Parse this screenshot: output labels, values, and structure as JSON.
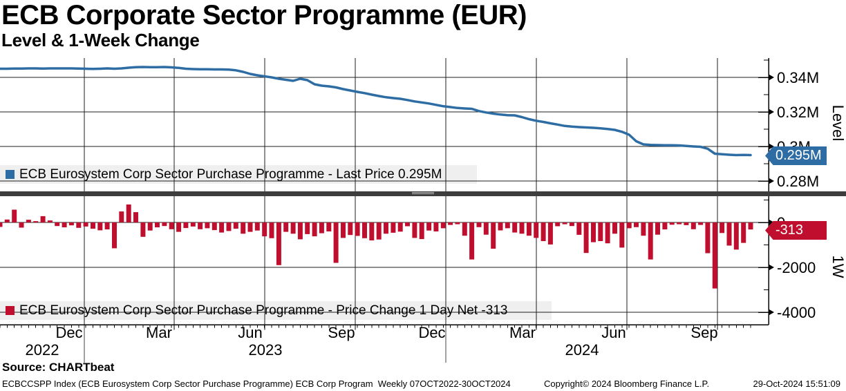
{
  "title": "ECB Corporate Sector Programme (EUR)",
  "subtitle": "Level & 1-Week Change",
  "source": "Source: CHARTbeat",
  "status_bar": {
    "left": "ECBCCSPP Index (ECB Eurosystem Corp Sector Purchase Programme) ECB Corp Program  Weekly 07OCT2022-30OCT2024",
    "copyright": "Copyright© 2024 Bloomberg Finance L.P.",
    "timestamp": "29-Oct-2024 15:51:09"
  },
  "colors": {
    "line_blue": "#2e6da4",
    "bar_red": "#c00f2e",
    "tag_blue": "#2e6da4",
    "tag_red": "#c00f2e",
    "legend_bg": "#efefef",
    "grid": "#1c1c1c",
    "separator": "#3d3d3d"
  },
  "x_axis": {
    "month_labels": [
      "Dec",
      "Mar",
      "Jun",
      "Sep",
      "Dec",
      "Mar",
      "Jun",
      "Sep"
    ],
    "year_labels": [
      "2022",
      "2023",
      "2024"
    ]
  },
  "chart_data": [
    {
      "type": "line",
      "panel": "top",
      "legend": "ECB Eurosystem Corp Sector Purchase Programme - Last Price 0.295M",
      "series_name": "ECB Eurosystem Corp Sector Purchase Programme",
      "measure": "Last Price",
      "unit": "M",
      "tag": "0.295M",
      "last_value": 0.295,
      "frequency": "Weekly",
      "x_range": "07OCT2022-30OCT2024",
      "y_axis": {
        "title": "Level",
        "major_ticks": [
          0.34,
          0.32,
          0.3,
          0.28
        ],
        "major_tick_labels": [
          "0.34M",
          "0.32M",
          "0.3M",
          "0.28M"
        ],
        "minor_ticks": [
          0.35,
          0.33,
          0.31,
          0.29
        ]
      },
      "values_M": [
        0.345,
        0.345,
        0.3451,
        0.3451,
        0.3452,
        0.3452,
        0.3451,
        0.3452,
        0.3452,
        0.3452,
        0.3452,
        0.3451,
        0.345,
        0.3449,
        0.345,
        0.3452,
        0.345,
        0.3452,
        0.3456,
        0.3459,
        0.346,
        0.3459,
        0.3459,
        0.346,
        0.3458,
        0.3455,
        0.345,
        0.3448,
        0.3447,
        0.3447,
        0.3446,
        0.3446,
        0.3445,
        0.3441,
        0.3432,
        0.342,
        0.3412,
        0.3406,
        0.34,
        0.3392,
        0.3386,
        0.338,
        0.3392,
        0.3384,
        0.336,
        0.3352,
        0.3348,
        0.3342,
        0.3332,
        0.3324,
        0.3316,
        0.3309,
        0.33,
        0.3292,
        0.3285,
        0.328,
        0.3276,
        0.3269,
        0.3261,
        0.3255,
        0.3249,
        0.3241,
        0.3233,
        0.3228,
        0.3223,
        0.322,
        0.3218,
        0.3205,
        0.3197,
        0.319,
        0.3185,
        0.3181,
        0.318,
        0.317,
        0.3158,
        0.3149,
        0.3142,
        0.3134,
        0.3127,
        0.3119,
        0.3115,
        0.3112,
        0.311,
        0.3108,
        0.3105,
        0.3101,
        0.3096,
        0.3085,
        0.3068,
        0.303,
        0.3012,
        0.3009,
        0.3008,
        0.3007,
        0.3007,
        0.3006,
        0.3003,
        0.3,
        0.2998,
        0.2987,
        0.2958,
        0.2955,
        0.2952,
        0.295,
        0.2951,
        0.295
      ]
    },
    {
      "type": "bar",
      "panel": "bottom",
      "legend": "ECB Eurosystem Corp Sector Purchase Programme - Price Change 1 Day Net -313",
      "series_name": "ECB Eurosystem Corp Sector Purchase Programme",
      "measure": "Price Change 1 Day Net",
      "tag": "-313",
      "last_value": -313,
      "y_axis": {
        "title": "1W",
        "major_ticks": [
          0,
          -2000,
          -4000
        ],
        "major_tick_labels": [
          "0",
          "-2000",
          "-4000"
        ],
        "minor_ticks": [
          1000,
          -1000,
          -3000
        ]
      },
      "values": [
        -200,
        130,
        570,
        -230,
        120,
        60,
        280,
        90,
        -160,
        -220,
        -130,
        -240,
        -180,
        -280,
        -350,
        -310,
        -1150,
        490,
        800,
        460,
        -640,
        -360,
        -220,
        -160,
        -300,
        -420,
        -250,
        -180,
        -300,
        -260,
        -340,
        -450,
        -380,
        -280,
        -500,
        -420,
        -360,
        -620,
        -700,
        -1900,
        -420,
        -500,
        -750,
        -520,
        -620,
        -480,
        -400,
        -1800,
        -690,
        -560,
        -600,
        -700,
        -800,
        -760,
        -500,
        -460,
        -410,
        -170,
        -690,
        -740,
        -360,
        -400,
        -260,
        -110,
        -80,
        -590,
        -1650,
        -210,
        -545,
        -1170,
        -354,
        -260,
        -450,
        -500,
        -590,
        -690,
        -830,
        -980,
        -170,
        -80,
        -160,
        -550,
        -1360,
        -880,
        -830,
        -930,
        -500,
        -1120,
        -260,
        -210,
        -590,
        -1650,
        -545,
        -310,
        -100,
        -80,
        -120,
        -300,
        -110,
        -1370,
        -2940,
        -470,
        -1030,
        -1210,
        -910,
        -313
      ]
    }
  ]
}
